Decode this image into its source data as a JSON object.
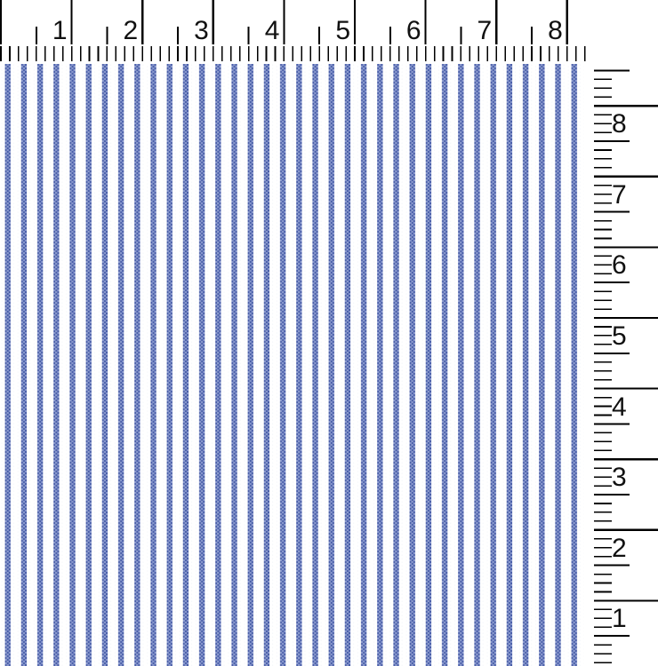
{
  "view_title": "striped-fabric-swatch-with-rulers",
  "top_ruler": {
    "orientation": "horizontal",
    "units": "inches",
    "numbers": [
      "1",
      "2",
      "3",
      "4",
      "5",
      "6",
      "7",
      "8"
    ],
    "tick_color": "#000000",
    "number_color": "#111111"
  },
  "right_ruler": {
    "orientation": "vertical",
    "units": "inches",
    "numbers": [
      "8",
      "7",
      "6",
      "5",
      "4",
      "3",
      "2",
      "1"
    ],
    "tick_color": "#000000",
    "number_color": "#111111"
  },
  "fabric": {
    "description": "blue and white ticking stripe woven fabric",
    "background_color": "#ffffff",
    "stripe_dark_color": "#4a5fa9",
    "stripe_light_color": "#8696cc",
    "speckle_color": "#eef1f7",
    "stripe_count": 36
  }
}
